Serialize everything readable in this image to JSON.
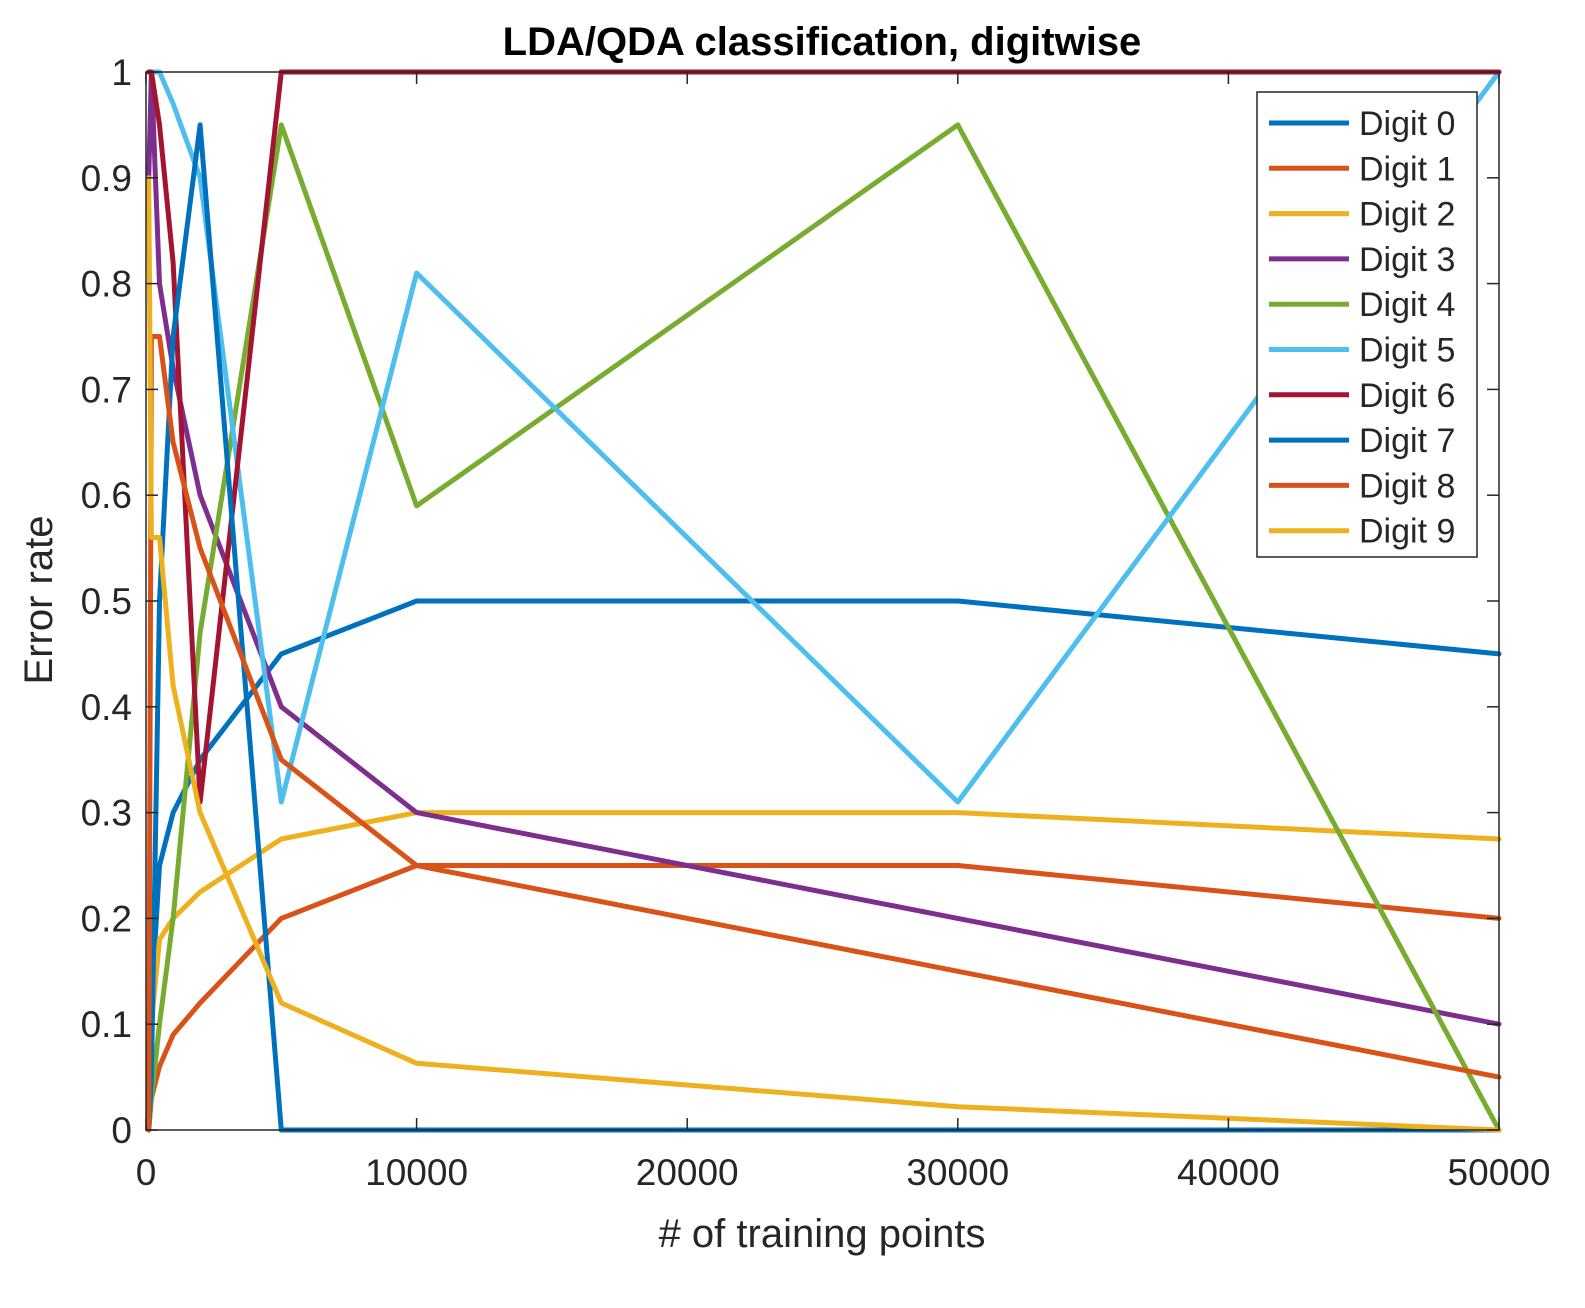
{
  "chart_data": {
    "type": "line",
    "title": "LDA/QDA classification, digitwise",
    "xlabel": "# of training points",
    "ylabel": "Error rate",
    "xlim": [
      0,
      50000
    ],
    "ylim": [
      0,
      1
    ],
    "xticks": [
      0,
      10000,
      20000,
      30000,
      40000,
      50000
    ],
    "yticks": [
      0,
      0.1,
      0.2,
      0.3,
      0.4,
      0.5,
      0.6,
      0.7,
      0.8,
      0.9,
      1
    ],
    "grid": false,
    "legend_position": "top-right",
    "x": [
      100,
      200,
      500,
      1000,
      2000,
      5000,
      10000,
      30000,
      50000
    ],
    "series": [
      {
        "name": "Digit 0",
        "color": "#0072BD",
        "values": [
          0.05,
          0.12,
          0.25,
          0.3,
          0.35,
          0.45,
          0.5,
          0.5,
          0.45
        ]
      },
      {
        "name": "Digit 1",
        "color": "#D95319",
        "values": [
          0.0,
          0.03,
          0.06,
          0.09,
          0.12,
          0.2,
          0.25,
          0.25,
          0.2
        ]
      },
      {
        "name": "Digit 2",
        "color": "#EDB120",
        "values": [
          0.0,
          0.1,
          0.18,
          0.2,
          0.225,
          0.275,
          0.3,
          0.3,
          0.275
        ]
      },
      {
        "name": "Digit 3",
        "color": "#7E2F8E",
        "values": [
          0.9,
          1.0,
          0.8,
          0.72,
          0.6,
          0.4,
          0.3,
          0.2,
          0.1
        ]
      },
      {
        "name": "Digit 4",
        "color": "#77AC30",
        "values": [
          0.0,
          0.03,
          0.1,
          0.2,
          0.47,
          0.95,
          0.59,
          0.95,
          0.0
        ]
      },
      {
        "name": "Digit 5",
        "color": "#4DBEEE",
        "values": [
          1.0,
          1.0,
          1.0,
          0.97,
          0.9,
          0.31,
          0.81,
          0.31,
          1.0
        ]
      },
      {
        "name": "Digit 6",
        "color": "#A2142F",
        "values": [
          1.0,
          1.0,
          0.95,
          0.82,
          0.31,
          1.0,
          1.0,
          1.0,
          1.0
        ]
      },
      {
        "name": "Digit 7",
        "color": "#0072BD",
        "values": [
          0.0,
          0.05,
          0.5,
          0.75,
          0.95,
          0.0,
          0.0,
          0.0,
          0.0
        ]
      },
      {
        "name": "Digit 8",
        "color": "#D95319",
        "values": [
          0.0,
          0.75,
          0.75,
          0.65,
          0.55,
          0.35,
          0.25,
          0.15,
          0.05
        ]
      },
      {
        "name": "Digit 9",
        "color": "#EDB120",
        "values": [
          0.9,
          0.56,
          0.56,
          0.42,
          0.3,
          0.12,
          0.063,
          0.022,
          0.0
        ]
      }
    ]
  }
}
